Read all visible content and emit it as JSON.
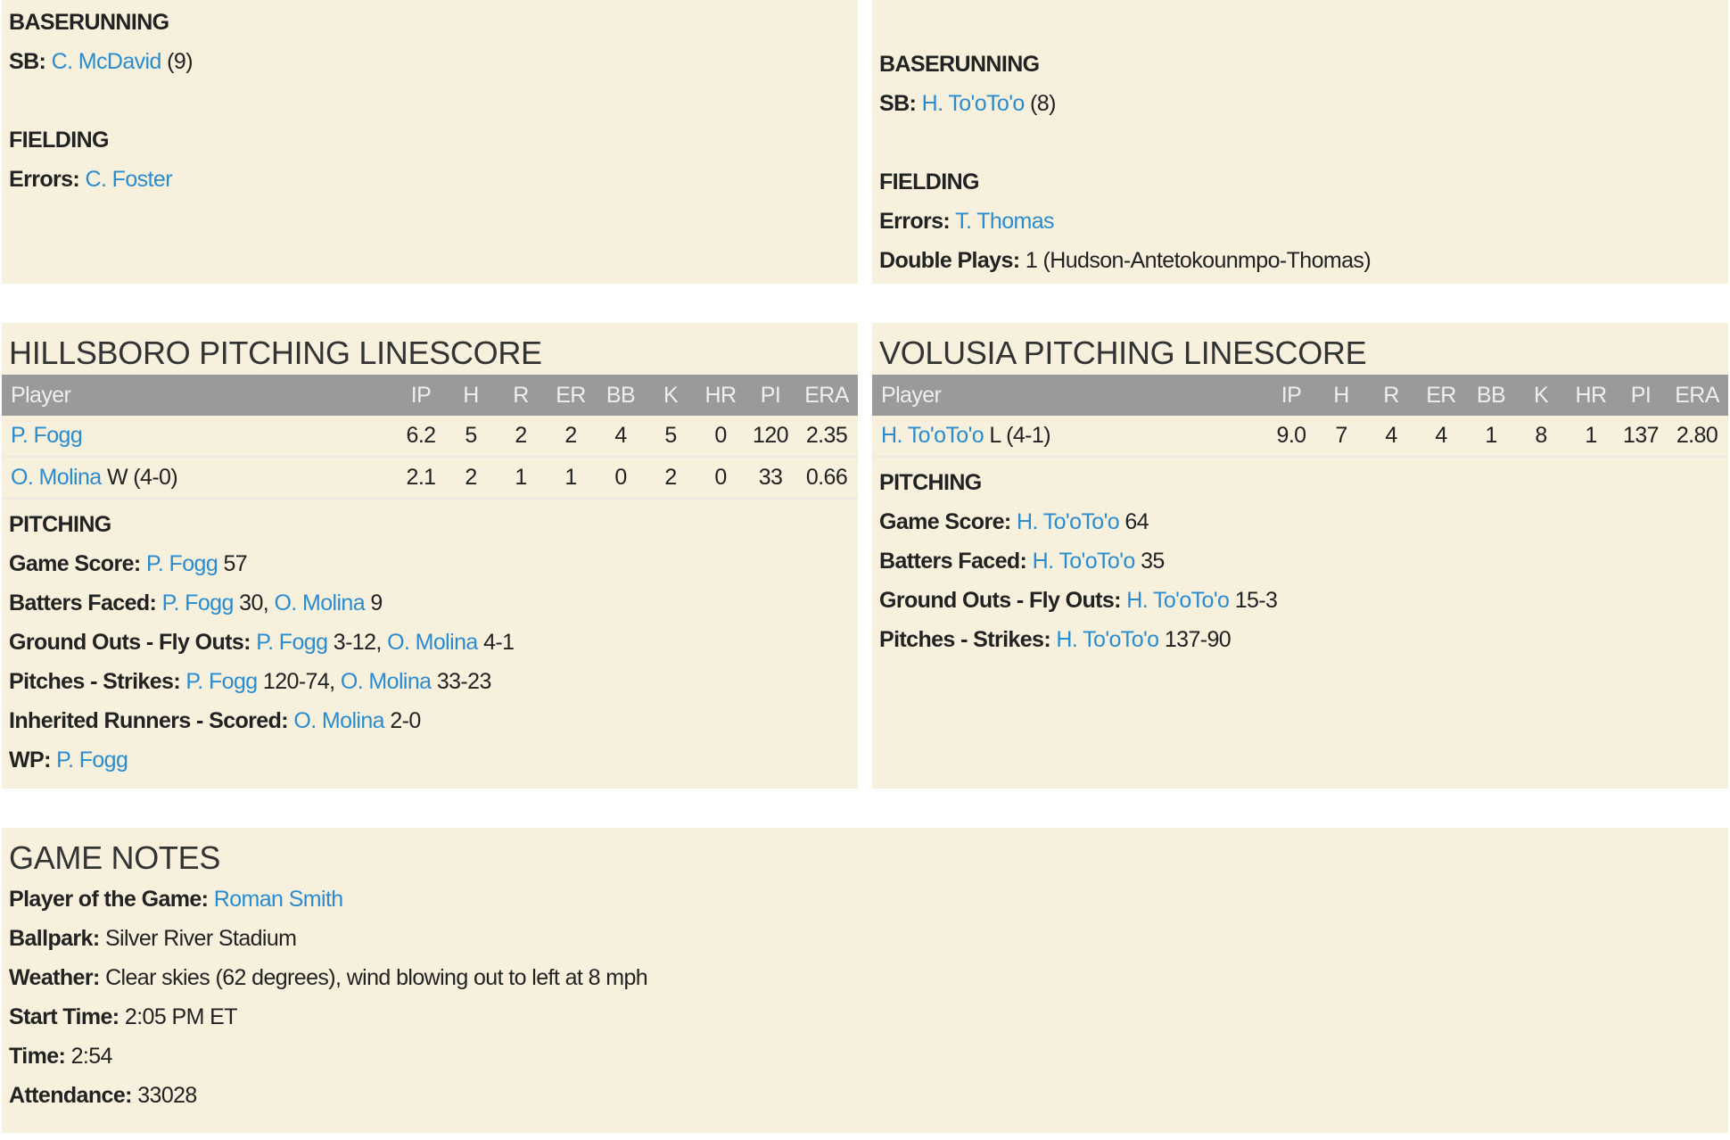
{
  "hillsboro": {
    "baserunning": {
      "heading": "BASERUNNING",
      "sb_label": "SB:",
      "sb_player": "C. McDavid",
      "sb_count": "(9)"
    },
    "fielding": {
      "heading": "FIELDING",
      "errors_label": "Errors:",
      "errors_player": "C. Foster"
    },
    "pitching_title": "HILLSBORO PITCHING LINESCORE",
    "columns": [
      "Player",
      "IP",
      "H",
      "R",
      "ER",
      "BB",
      "K",
      "HR",
      "PI",
      "ERA"
    ],
    "rows": [
      {
        "player": "P. Fogg",
        "decision": "",
        "stats": [
          "6.2",
          "5",
          "2",
          "2",
          "4",
          "5",
          "0",
          "120",
          "2.35"
        ]
      },
      {
        "player": "O. Molina",
        "decision": "W (4-0)",
        "stats": [
          "2.1",
          "2",
          "1",
          "1",
          "0",
          "2",
          "0",
          "33",
          "0.66"
        ]
      }
    ],
    "pitching": {
      "heading": "PITCHING",
      "game_score_label": "Game Score:",
      "game_score": [
        {
          "player": "P. Fogg",
          "value": "57"
        }
      ],
      "batters_faced_label": "Batters Faced:",
      "batters_faced": [
        {
          "player": "P. Fogg",
          "value": "30"
        },
        {
          "player": "O. Molina",
          "value": "9"
        }
      ],
      "go_fo_label": "Ground Outs - Fly Outs:",
      "go_fo": [
        {
          "player": "P. Fogg",
          "value": "3-12"
        },
        {
          "player": "O. Molina",
          "value": "4-1"
        }
      ],
      "pitches_label": "Pitches - Strikes:",
      "pitches": [
        {
          "player": "P. Fogg",
          "value": "120-74"
        },
        {
          "player": "O. Molina",
          "value": "33-23"
        }
      ],
      "inherited_label": "Inherited Runners - Scored:",
      "inherited": [
        {
          "player": "O. Molina",
          "value": "2-0"
        }
      ],
      "wp_label": "WP:",
      "wp_player": "P. Fogg"
    }
  },
  "volusia": {
    "baserunning": {
      "heading": "BASERUNNING",
      "sb_label": "SB:",
      "sb_player": "H. To'oTo'o",
      "sb_count": "(8)"
    },
    "fielding": {
      "heading": "FIELDING",
      "errors_label": "Errors:",
      "errors_player": "T. Thomas",
      "dp_label": "Double Plays:",
      "dp_value": "1 (Hudson-Antetokounmpo-Thomas)"
    },
    "pitching_title": "VOLUSIA PITCHING LINESCORE",
    "columns": [
      "Player",
      "IP",
      "H",
      "R",
      "ER",
      "BB",
      "K",
      "HR",
      "PI",
      "ERA"
    ],
    "rows": [
      {
        "player": "H. To'oTo'o",
        "decision": "L (4-1)",
        "stats": [
          "9.0",
          "7",
          "4",
          "4",
          "1",
          "8",
          "1",
          "137",
          "2.80"
        ]
      }
    ],
    "pitching": {
      "heading": "PITCHING",
      "game_score_label": "Game Score:",
      "game_score_player": "H. To'oTo'o",
      "game_score": "64",
      "batters_faced_label": "Batters Faced:",
      "batters_faced_player": "H. To'oTo'o",
      "batters_faced": "35",
      "go_fo_label": "Ground Outs - Fly Outs:",
      "go_fo_player": "H. To'oTo'o",
      "go_fo": "15-3",
      "pitches_label": "Pitches - Strikes:",
      "pitches_player": "H. To'oTo'o",
      "pitches": "137-90"
    }
  },
  "game_notes": {
    "title": "GAME NOTES",
    "potg_label": "Player of the Game:",
    "potg": "Roman Smith",
    "ballpark_label": "Ballpark:",
    "ballpark": "Silver River Stadium",
    "weather_label": "Weather:",
    "weather": "Clear skies (62 degrees), wind blowing out to left at 8 mph",
    "start_label": "Start Time:",
    "start": "2:05 PM ET",
    "time_label": "Time:",
    "time": "2:54",
    "attendance_label": "Attendance:",
    "attendance": "33028"
  }
}
